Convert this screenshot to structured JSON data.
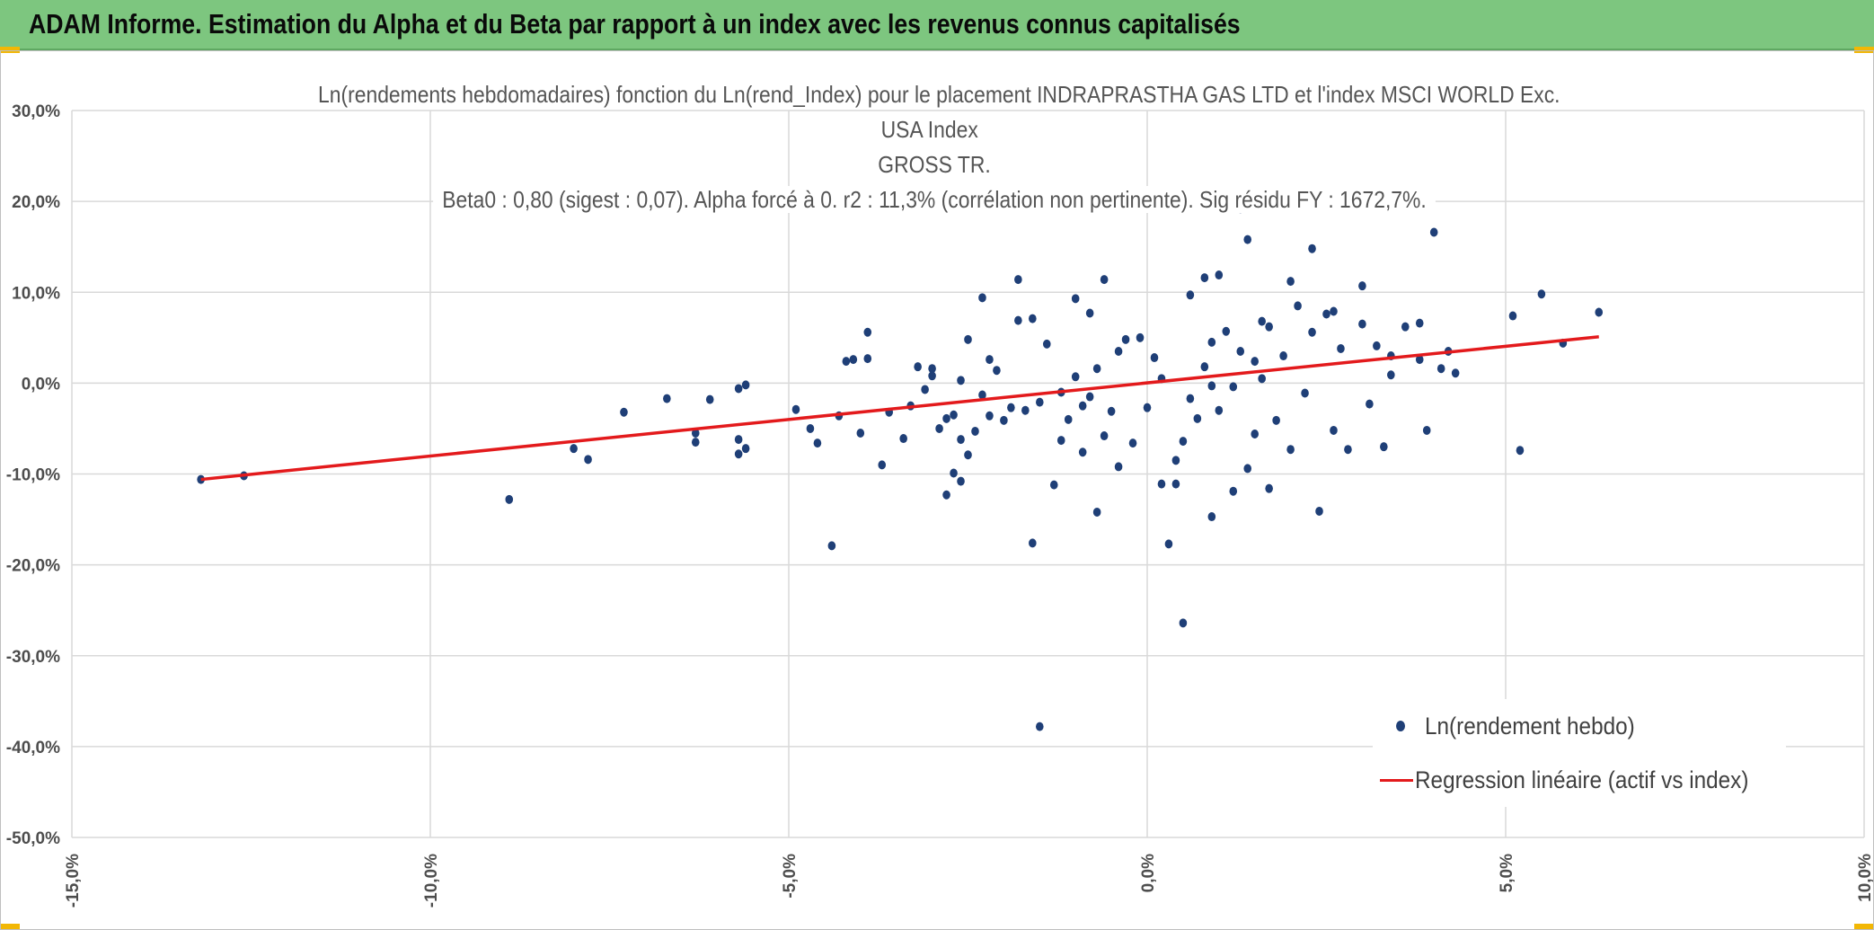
{
  "header": {
    "title": "ADAM Informe. Estimation du Alpha et du Beta par rapport à un index avec les revenus connus capitalisés"
  },
  "colors": {
    "banner": "#7dc67f",
    "points": "#1f3f77",
    "regression": "#e31a1c",
    "grid": "#d9d9d9"
  },
  "chart_data": {
    "type": "scatter",
    "title_lines": [
      "Ln(rendements hebdomadaires) fonction du Ln(rend_Index) pour le placement INDRAPRASTHA GAS LTD et l'index MSCI WORLD Exc. USA Index",
      "GROSS TR.",
      "Beta0 : 0,80 (sigest : 0,07). Alpha forcé à 0. r2 : 11,3% (corrélation non pertinente). Sig résidu FY : 1672,7%."
    ],
    "xlabel": "",
    "ylabel": "",
    "xlim": [
      -15,
      10
    ],
    "ylim": [
      -50,
      30
    ],
    "x_ticks": [
      "-15,0%",
      "-10,0%",
      "-5,0%",
      "0,0%",
      "5,0%",
      "10,0%"
    ],
    "y_ticks": [
      "30,0%",
      "20,0%",
      "10,0%",
      "0,0%",
      "-10,0%",
      "-20,0%",
      "-30,0%",
      "-40,0%",
      "-50,0%"
    ],
    "grid": true,
    "legend_position": "bottom-right",
    "series": [
      {
        "name": "Ln(rendement hebdo)",
        "kind": "scatter",
        "points": [
          [
            -13.2,
            -10.6
          ],
          [
            -12.6,
            -10.2
          ],
          [
            -8.9,
            -12.8
          ],
          [
            -8,
            -7.2
          ],
          [
            -7.8,
            -8.4
          ],
          [
            -7.3,
            -3.2
          ],
          [
            -6.7,
            -1.7
          ],
          [
            -6.3,
            -5.5
          ],
          [
            -6.3,
            -6.5
          ],
          [
            -6.1,
            -1.8
          ],
          [
            -5.7,
            -7.8
          ],
          [
            -5.7,
            -6.2
          ],
          [
            -5.7,
            -0.6
          ],
          [
            -5.6,
            -0.2
          ],
          [
            -5.6,
            -7.2
          ],
          [
            -4.9,
            -2.9
          ],
          [
            -4.7,
            -5.0
          ],
          [
            -4.6,
            -6.6
          ],
          [
            -4.4,
            -17.9
          ],
          [
            -4.3,
            -3.6
          ],
          [
            -4.2,
            2.4
          ],
          [
            -4.1,
            2.6
          ],
          [
            -4.0,
            -5.5
          ],
          [
            -3.9,
            5.6
          ],
          [
            -3.9,
            2.7
          ],
          [
            -3.7,
            -9.0
          ],
          [
            -3.6,
            -3.2
          ],
          [
            -3.3,
            -2.5
          ],
          [
            -3.2,
            1.8
          ],
          [
            -3.1,
            -0.7
          ],
          [
            -3.0,
            1.6
          ],
          [
            -3.0,
            0.8
          ],
          [
            -2.8,
            -3.9
          ],
          [
            -2.8,
            -12.3
          ],
          [
            -2.7,
            -3.5
          ],
          [
            -2.7,
            -9.9
          ],
          [
            -2.6,
            -6.2
          ],
          [
            -2.6,
            -10.8
          ],
          [
            -2.5,
            -7.9
          ],
          [
            -2.5,
            4.8
          ],
          [
            -2.4,
            -5.3
          ],
          [
            -2.3,
            -1.3
          ],
          [
            -2.2,
            2.6
          ],
          [
            -2.1,
            1.4
          ],
          [
            -2.0,
            -4.1
          ],
          [
            -1.8,
            6.9
          ],
          [
            -1.7,
            -3.0
          ],
          [
            -1.6,
            -17.6
          ],
          [
            -1.6,
            7.1
          ],
          [
            -1.5,
            -2.1
          ],
          [
            -1.4,
            4.3
          ],
          [
            -1.2,
            -6.3
          ],
          [
            -1.2,
            -1.0
          ],
          [
            -1.1,
            -4.0
          ],
          [
            -1.0,
            9.3
          ],
          [
            -0.9,
            -2.5
          ],
          [
            -0.8,
            7.7
          ],
          [
            -0.7,
            -14.2
          ],
          [
            -0.7,
            1.6
          ],
          [
            -0.6,
            11.4
          ],
          [
            -0.5,
            -3.1
          ],
          [
            -0.4,
            3.5
          ],
          [
            -0.3,
            4.8
          ],
          [
            -0.2,
            -6.6
          ],
          [
            -0.1,
            5.0
          ],
          [
            0.0,
            -2.7
          ],
          [
            0.1,
            2.8
          ],
          [
            0.2,
            -11.1
          ],
          [
            0.3,
            -17.7
          ],
          [
            0.4,
            -11.1
          ],
          [
            0.5,
            -26.4
          ],
          [
            0.5,
            -6.4
          ],
          [
            0.6,
            -1.7
          ],
          [
            0.7,
            -3.9
          ],
          [
            0.8,
            11.6
          ],
          [
            0.8,
            1.8
          ],
          [
            0.9,
            -14.7
          ],
          [
            0.9,
            4.5
          ],
          [
            1.0,
            11.9
          ],
          [
            1.0,
            -3.0
          ],
          [
            1.1,
            5.7
          ],
          [
            1.2,
            -11.9
          ],
          [
            1.2,
            -0.4
          ],
          [
            1.3,
            3.5
          ],
          [
            1.3,
            19.2
          ],
          [
            1.4,
            -9.4
          ],
          [
            1.4,
            15.8
          ],
          [
            1.5,
            2.4
          ],
          [
            1.5,
            -5.6
          ],
          [
            1.6,
            0.5
          ],
          [
            1.7,
            -11.6
          ],
          [
            1.7,
            6.2
          ],
          [
            1.8,
            -4.1
          ],
          [
            1.9,
            3.0
          ],
          [
            2.0,
            -7.3
          ],
          [
            2.0,
            11.2
          ],
          [
            2.1,
            8.5
          ],
          [
            2.2,
            -1.1
          ],
          [
            2.3,
            5.6
          ],
          [
            2.3,
            14.8
          ],
          [
            2.4,
            -14.1
          ],
          [
            2.5,
            7.6
          ],
          [
            2.6,
            -5.2
          ],
          [
            2.7,
            3.8
          ],
          [
            2.8,
            -7.3
          ],
          [
            3.0,
            10.7
          ],
          [
            3.0,
            6.5
          ],
          [
            3.1,
            -2.3
          ],
          [
            3.2,
            4.1
          ],
          [
            3.3,
            -7.0
          ],
          [
            3.4,
            0.9
          ],
          [
            3.6,
            6.2
          ],
          [
            3.8,
            2.6
          ],
          [
            3.8,
            6.6
          ],
          [
            3.9,
            -5.2
          ],
          [
            4.0,
            16.6
          ],
          [
            4.1,
            1.6
          ],
          [
            4.2,
            3.5
          ],
          [
            4.3,
            1.1
          ],
          [
            5.1,
            7.4
          ],
          [
            5.2,
            -7.4
          ],
          [
            5.5,
            9.8
          ],
          [
            5.8,
            4.4
          ],
          [
            6.3,
            7.8
          ],
          [
            -1.8,
            11.4
          ],
          [
            -2.3,
            9.4
          ],
          [
            -1.9,
            -2.7
          ],
          [
            -0.9,
            -7.6
          ],
          [
            -0.4,
            -9.2
          ],
          [
            0.6,
            9.7
          ],
          [
            1.6,
            6.8
          ],
          [
            2.6,
            7.9
          ],
          [
            3.4,
            3.0
          ],
          [
            -1.5,
            -37.8
          ],
          [
            0.4,
            -8.5
          ],
          [
            -0.6,
            -5.8
          ],
          [
            -1.3,
            -11.2
          ],
          [
            -3.4,
            -6.1
          ],
          [
            -2.9,
            -5.0
          ],
          [
            -2.6,
            0.3
          ],
          [
            -2.2,
            -3.6
          ],
          [
            -1.0,
            0.7
          ],
          [
            -0.8,
            -1.5
          ],
          [
            0.2,
            0.5
          ],
          [
            0.9,
            -0.3
          ]
        ]
      },
      {
        "name": "Regression linéaire (actif vs index)",
        "kind": "line",
        "points": [
          [
            -13.2,
            -10.6
          ],
          [
            6.3,
            5.1
          ]
        ]
      }
    ]
  }
}
